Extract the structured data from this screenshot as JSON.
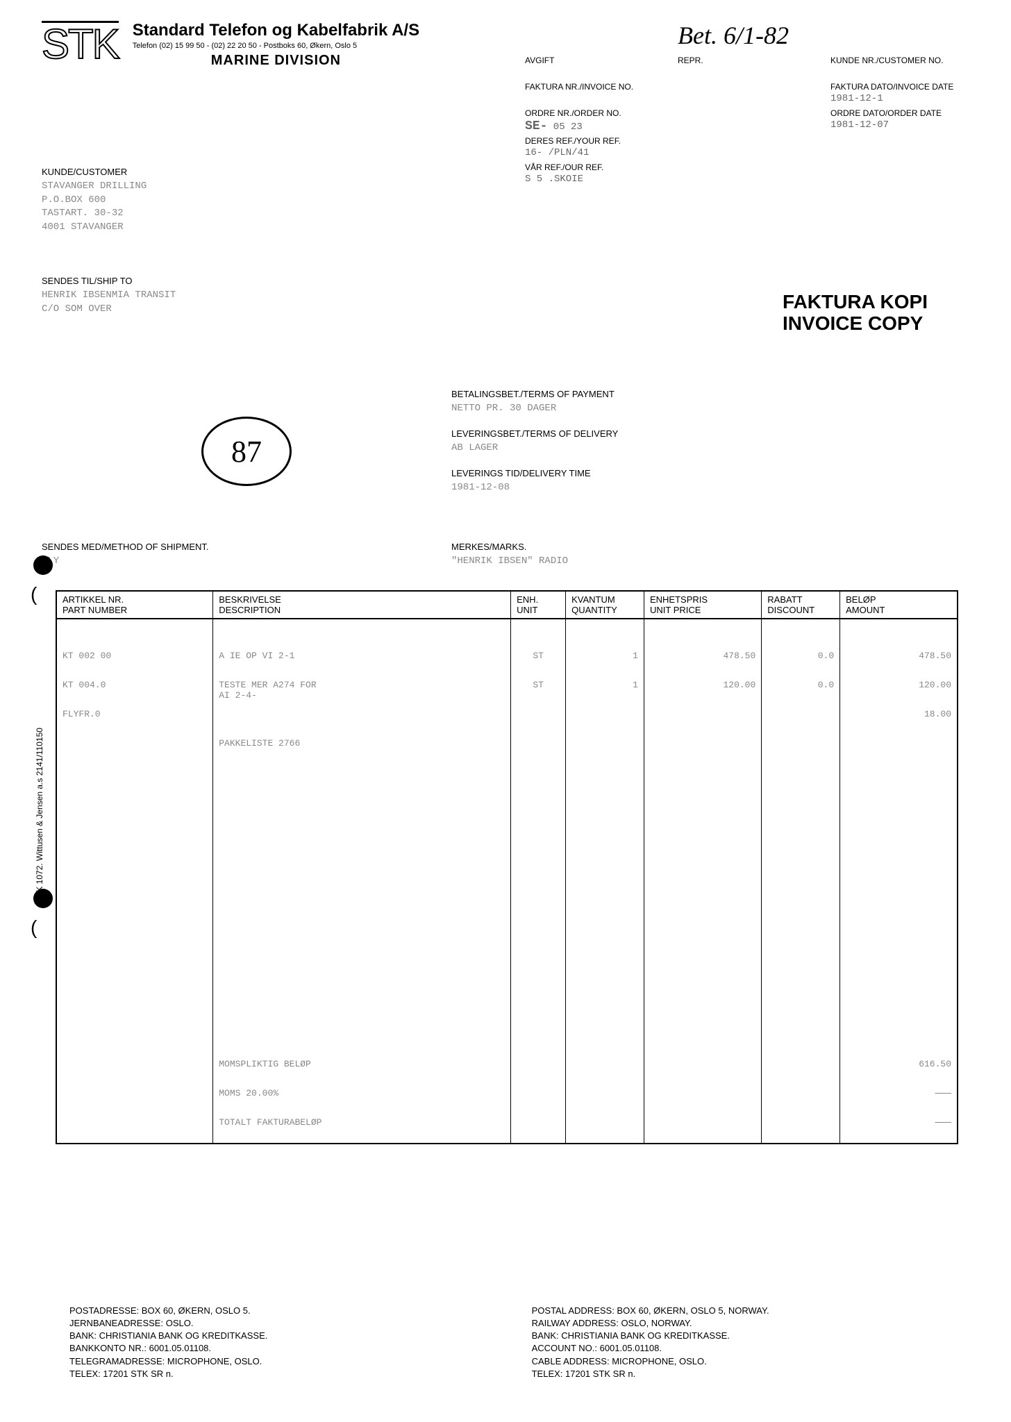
{
  "handwritten_note": "Bet. 6/1-82",
  "logo_text": "STK",
  "company": {
    "name": "Standard Telefon og Kabelfabrik A/S",
    "contact": "Telefon (02) 15 99 50 - (02) 22 20 50 - Postboks 60, Økern, Oslo 5",
    "division": "MARINE DIVISION"
  },
  "meta": {
    "avgift_label": "AVGIFT",
    "avgift_value": "",
    "repr_label": "REPR.",
    "repr_value": "",
    "customer_no_label": "KUNDE NR./CUSTOMER NO.",
    "customer_no_value": "",
    "invoice_no_label": "FAKTURA NR./INVOICE NO.",
    "invoice_no_value": "",
    "invoice_date_label": "FAKTURA DATO/INVOICE DATE",
    "invoice_date_value": "1981-12-1",
    "order_no_label": "ORDRE NR./ORDER NO.",
    "order_no_prefix": "SE-",
    "order_no_value": " 05 23",
    "order_date_label": "ORDRE DATO/ORDER DATE",
    "order_date_value": "1981-12-07",
    "your_ref_label": "DERES REF./YOUR REF.",
    "your_ref_value": "16-  /PLN/41",
    "our_ref_label": "VÅR REF./OUR REF.",
    "our_ref_value": "S  5  .SKOIE"
  },
  "customer": {
    "label": "KUNDE/CUSTOMER",
    "value": "STAVANGER DRILLING\nP.O.BOX 600\nTASTART. 30-32\n4001 STAVANGER"
  },
  "ship_to": {
    "label": "SENDES TIL/SHIP TO",
    "value": "HENRIK IBSENMIA TRANSIT\nC/O SOM OVER"
  },
  "circled_number": "87",
  "invoice_copy": {
    "line1": "FAKTURA KOPI",
    "line2": "INVOICE COPY"
  },
  "payment": {
    "label": "BETALINGSBET./TERMS OF PAYMENT",
    "value": "NETTO PR. 30 DAGER"
  },
  "delivery_terms": {
    "label": "LEVERINGSBET./TERMS OF DELIVERY",
    "value": "AB LAGER"
  },
  "delivery_time": {
    "label": "LEVERINGS TID/DELIVERY TIME",
    "value": "1981-12-08"
  },
  "shipment": {
    "label": "SENDES MED/METHOD OF SHIPMENT.",
    "value": "FLY"
  },
  "marks": {
    "label": "MERKES/MARKS.",
    "value": "\"HENRIK IBSEN\" RADIO"
  },
  "table": {
    "headers": {
      "part_no1": "ARTIKKEL NR.",
      "part_no2": "PART NUMBER",
      "desc1": "BESKRIVELSE",
      "desc2": "DESCRIPTION",
      "unit1": "ENH.",
      "unit2": "UNIT",
      "qty1": "KVANTUM",
      "qty2": "QUANTITY",
      "price1": "ENHETSPRIS",
      "price2": "UNIT PRICE",
      "disc1": "RABATT",
      "disc2": "DISCOUNT",
      "amt1": "BELØP",
      "amt2": "AMOUNT"
    },
    "rows": [
      {
        "part": "KT 002 00  ",
        "desc": "A IE OP  VI 2-1",
        "unit": "ST",
        "qty": "1",
        "price": "478.50",
        "disc": "0.0",
        "amt": "478.50"
      },
      {
        "part": "KT  004.0  ",
        "desc": "TESTE  MER A274 FOR\nAI 2-4-",
        "unit": "ST",
        "qty": "1",
        "price": "120.00",
        "disc": "0.0",
        "amt": "120.00"
      },
      {
        "part": "   FLYFR.0",
        "desc": "",
        "unit": "",
        "qty": "",
        "price": "",
        "disc": "",
        "amt": "18.00"
      },
      {
        "part": "",
        "desc": "PAKKELISTE 2766",
        "unit": "",
        "qty": "",
        "price": "",
        "disc": "",
        "amt": ""
      }
    ],
    "totals": [
      {
        "desc": "MOMSPLIKTIG BELØP",
        "amt": "616.50"
      },
      {
        "desc": "MOMS 20.00%",
        "amt": "———"
      },
      {
        "desc": "TOTALT FAKTURABELØP",
        "amt": "———"
      }
    ]
  },
  "vertical_text": "STK 1072.  Wittusen & Jensen a.s 2141/110150",
  "footer": {
    "left": "POSTADRESSE: BOX 60, ØKERN, OSLO 5.\nJERNBANEADRESSE: OSLO.\nBANK: CHRISTIANIA BANK OG KREDITKASSE.\nBANKKONTO NR.: 6001.05.01108.\nTELEGRAMADRESSE: MICROPHONE, OSLO.\nTELEX: 17201 STK SR n.",
    "right": "POSTAL ADDRESS: BOX 60, ØKERN, OSLO 5, NORWAY.\nRAILWAY ADDRESS: OSLO, NORWAY.\nBANK: CHRISTIANIA BANK OG KREDITKASSE.\nACCOUNT NO.: 6001.05.01108.\nCABLE ADDRESS: MICROPHONE, OSLO.\nTELEX: 17201 STK SR n."
  }
}
